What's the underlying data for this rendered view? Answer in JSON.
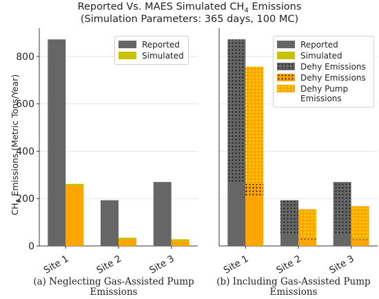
{
  "title_line1": "Reported Vs. MAES Simulated CH",
  "title_sub": "4",
  "title_line1_end": " Emissions",
  "title_line2": "(Simulation Parameters: 365 days, 100 MC)",
  "ylabel_prefix": "CH",
  "ylabel_sub": "4",
  "ylabel_suffix": " Emissions (Metric Tons/Year)",
  "colors": {
    "reported": "#666666",
    "simulated": "#c8c200",
    "dehy_sim": "#ffa500",
    "dot": "#1a1a1a"
  },
  "chart_data": [
    {
      "type": "bar",
      "caption_letter": "(a)",
      "caption": "Neglecting Gas-Assisted Pump Emissions",
      "categories": [
        "Site 1",
        "Site 2",
        "Site 3"
      ],
      "ylim": [
        0,
        890
      ],
      "yticks": [
        0,
        200,
        400,
        600,
        800
      ],
      "grid": true,
      "legend_position": "top-right",
      "series": [
        {
          "name": "Reported",
          "values": [
            872,
            193,
            270
          ]
        },
        {
          "name": "Simulated",
          "values": [
            262,
            35,
            28
          ]
        }
      ]
    },
    {
      "type": "bar",
      "caption_letter": "(b)",
      "caption": "Including Gas-Assisted Pump Emissions",
      "categories": [
        "Site 1",
        "Site 2",
        "Site 3"
      ],
      "ylim": [
        0,
        890
      ],
      "grid": true,
      "legend_position": "top-right",
      "series": [
        {
          "name": "Reported",
          "values": [
            872,
            193,
            270
          ]
        },
        {
          "name": "Simulated",
          "values": [
            262,
            35,
            28
          ]
        },
        {
          "name": "Dehy Emissions",
          "values": [
            610,
            145,
            225
          ]
        },
        {
          "name": "Dehy Emissions",
          "values": [
            50,
            8,
            10
          ]
        },
        {
          "name": "Dehy Pump Emissions",
          "values": [
            495,
            120,
            140
          ]
        }
      ]
    }
  ]
}
